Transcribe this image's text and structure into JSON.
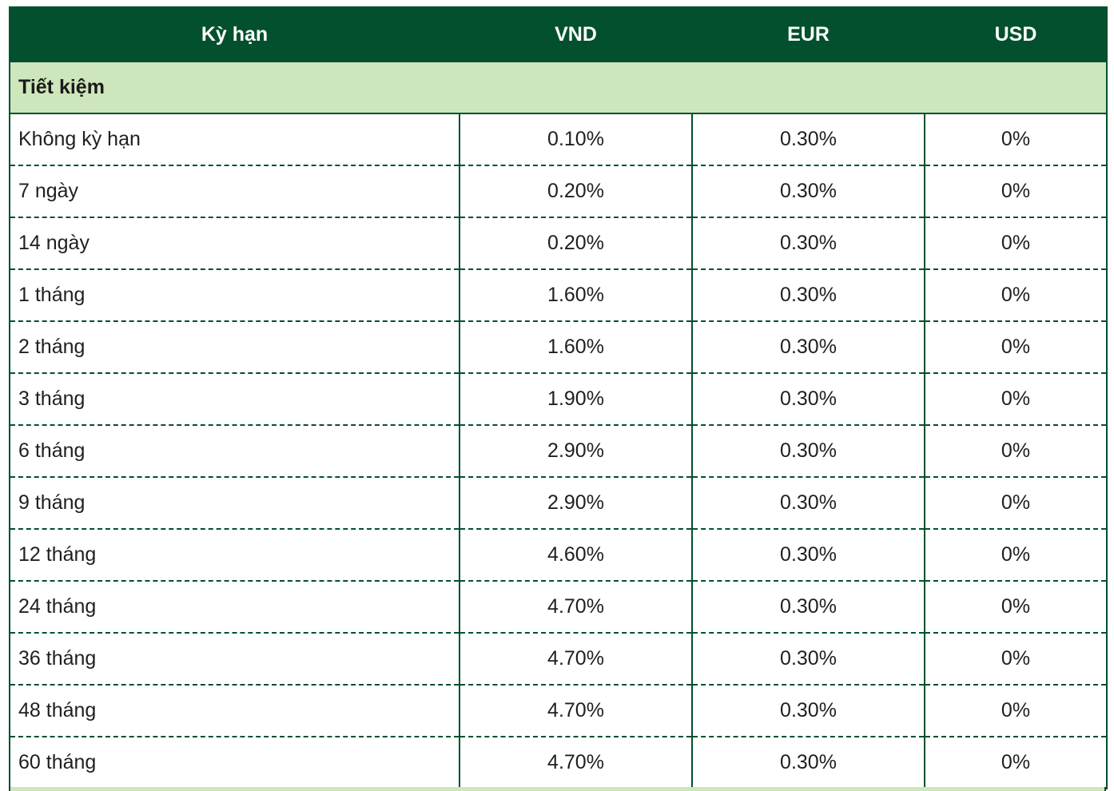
{
  "header": {
    "term": "Kỳ hạn",
    "vnd": "VND",
    "eur": "EUR",
    "usd": "USD"
  },
  "section": {
    "title": "Tiết kiệm"
  },
  "rows": [
    {
      "term": "Không kỳ hạn",
      "vnd": "0.10%",
      "eur": "0.30%",
      "usd": "0%"
    },
    {
      "term": "7 ngày",
      "vnd": "0.20%",
      "eur": "0.30%",
      "usd": "0%"
    },
    {
      "term": "14 ngày",
      "vnd": "0.20%",
      "eur": "0.30%",
      "usd": "0%"
    },
    {
      "term": "1 tháng",
      "vnd": "1.60%",
      "eur": "0.30%",
      "usd": "0%"
    },
    {
      "term": "2 tháng",
      "vnd": "1.60%",
      "eur": "0.30%",
      "usd": "0%"
    },
    {
      "term": "3 tháng",
      "vnd": "1.90%",
      "eur": "0.30%",
      "usd": "0%"
    },
    {
      "term": "6 tháng",
      "vnd": "2.90%",
      "eur": "0.30%",
      "usd": "0%"
    },
    {
      "term": "9 tháng",
      "vnd": "2.90%",
      "eur": "0.30%",
      "usd": "0%"
    },
    {
      "term": "12 tháng",
      "vnd": "4.60%",
      "eur": "0.30%",
      "usd": "0%"
    },
    {
      "term": "24 tháng",
      "vnd": "4.70%",
      "eur": "0.30%",
      "usd": "0%"
    },
    {
      "term": "36 tháng",
      "vnd": "4.70%",
      "eur": "0.30%",
      "usd": "0%"
    },
    {
      "term": "48 tháng",
      "vnd": "4.70%",
      "eur": "0.30%",
      "usd": "0%"
    },
    {
      "term": "60 tháng",
      "vnd": "4.70%",
      "eur": "0.30%",
      "usd": "0%"
    }
  ],
  "colors": {
    "header_bg": "#03502e",
    "section_bg": "#cde6bb",
    "border": "#03502e"
  }
}
